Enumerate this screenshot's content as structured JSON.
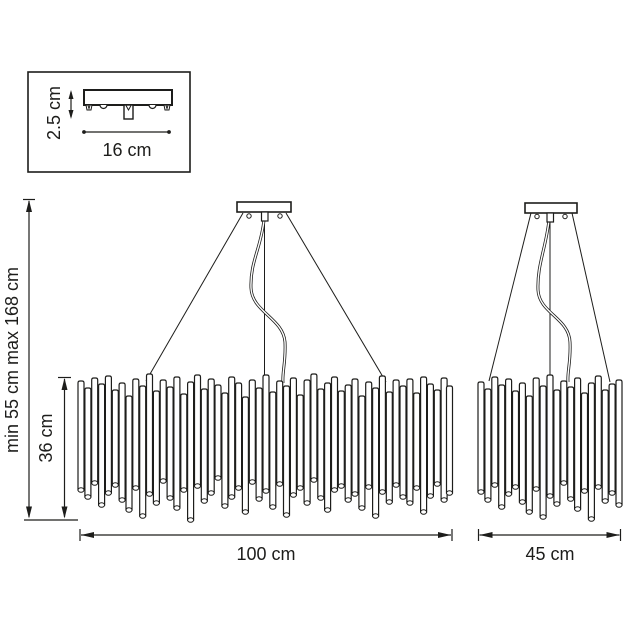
{
  "labels": {
    "canopy_height": "2.5 cm",
    "canopy_width": "16 cm",
    "suspension_range": "min 55 cm max 168 cm",
    "body_height": "36 cm",
    "large_fixture_width": "100 cm",
    "small_fixture_width": "45 cm"
  },
  "colors": {
    "line": "#1d1d1b",
    "background": "#ffffff"
  },
  "illustration": {
    "tube_width": 6,
    "tube_cap_ry": 2.3,
    "large_fixture_tubes": [
      [
        78,
        381,
        490
      ],
      [
        84.9,
        388,
        497
      ],
      [
        91.7,
        378,
        483
      ],
      [
        98.6,
        384,
        505
      ],
      [
        105.4,
        376,
        493
      ],
      [
        112.3,
        390,
        485
      ],
      [
        119.1,
        383,
        500
      ],
      [
        126,
        396,
        510
      ],
      [
        132.8,
        379,
        488
      ],
      [
        139.7,
        386,
        516
      ],
      [
        146.5,
        374,
        494
      ],
      [
        153.4,
        391,
        503
      ],
      [
        160.2,
        380,
        481
      ],
      [
        167.1,
        387,
        498
      ],
      [
        173.9,
        377,
        508
      ],
      [
        180.8,
        394,
        490
      ],
      [
        187.6,
        382,
        520
      ],
      [
        194.5,
        375,
        486
      ],
      [
        201.3,
        389,
        501
      ],
      [
        208.2,
        379,
        493
      ],
      [
        215,
        385,
        478
      ],
      [
        221.9,
        393,
        506
      ],
      [
        228.7,
        377,
        497
      ],
      [
        235.6,
        383,
        488
      ],
      [
        242.4,
        397,
        512
      ],
      [
        249.3,
        380,
        482
      ],
      [
        256.1,
        388,
        499
      ],
      [
        263,
        375,
        491
      ],
      [
        269.8,
        392,
        507
      ],
      [
        276.7,
        381,
        484
      ],
      [
        283.5,
        386,
        515
      ],
      [
        290.4,
        378,
        495
      ],
      [
        297.2,
        395,
        488
      ],
      [
        304.1,
        380,
        503
      ],
      [
        310.9,
        374,
        480
      ],
      [
        317.8,
        389,
        498
      ],
      [
        324.6,
        383,
        510
      ],
      [
        331.5,
        377,
        490
      ],
      [
        338.3,
        391,
        486
      ],
      [
        345.2,
        385,
        500
      ],
      [
        352,
        379,
        494
      ],
      [
        358.9,
        396,
        508
      ],
      [
        365.7,
        382,
        487
      ],
      [
        372.6,
        388,
        516
      ],
      [
        379.4,
        376,
        492
      ],
      [
        386.3,
        392,
        502
      ],
      [
        393.1,
        380,
        485
      ],
      [
        400,
        386,
        497
      ],
      [
        406.9,
        379,
        503
      ],
      [
        413.7,
        393,
        488
      ],
      [
        420.6,
        377,
        512
      ],
      [
        427.4,
        384,
        496
      ],
      [
        434.3,
        390,
        484
      ],
      [
        441.1,
        378,
        500
      ],
      [
        446.5,
        386,
        493
      ]
    ],
    "small_fixture_tubes": [
      [
        478,
        382,
        492
      ],
      [
        484.9,
        389,
        500
      ],
      [
        491.8,
        377,
        485
      ],
      [
        498.7,
        385,
        507
      ],
      [
        505.6,
        379,
        494
      ],
      [
        512.5,
        391,
        487
      ],
      [
        519.4,
        383,
        502
      ],
      [
        526.3,
        396,
        512
      ],
      [
        533.2,
        378,
        489
      ],
      [
        540.1,
        386,
        517
      ],
      [
        547,
        375,
        496
      ],
      [
        553.9,
        390,
        504
      ],
      [
        560.8,
        381,
        483
      ],
      [
        567.7,
        387,
        499
      ],
      [
        574.6,
        378,
        509
      ],
      [
        581.5,
        393,
        491
      ],
      [
        588.4,
        383,
        519
      ],
      [
        595.3,
        376,
        487
      ],
      [
        602.2,
        390,
        501
      ],
      [
        609.1,
        384,
        493
      ],
      [
        616,
        380,
        505
      ]
    ]
  }
}
